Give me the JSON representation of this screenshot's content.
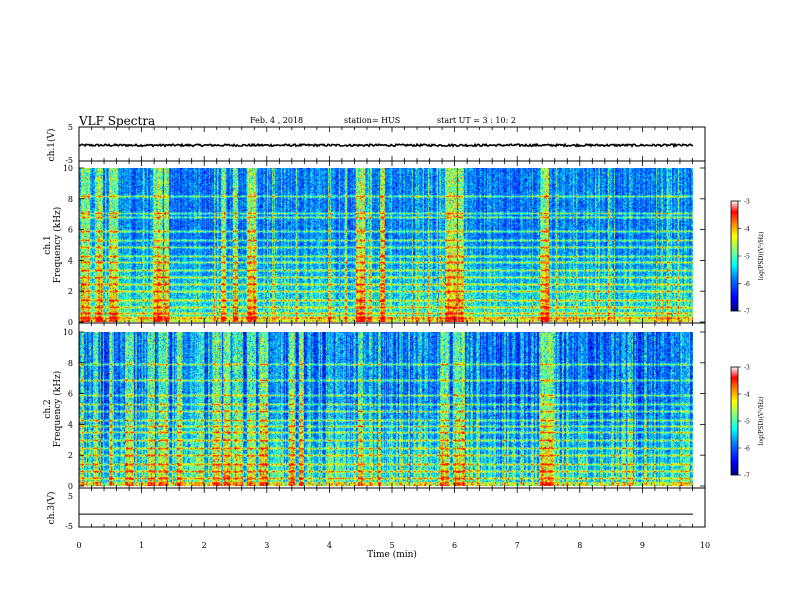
{
  "header": {
    "title": "VLF Spectra",
    "date": "Feb. 4 , 2018",
    "station": "station= HUS",
    "start": "start UT = 3 : 10: 2"
  },
  "colors": {
    "colormap": [
      "#00007f",
      "#0000ff",
      "#0080ff",
      "#00ffff",
      "#80ff80",
      "#ffff00",
      "#ff8000",
      "#ff0000",
      "#ffffff"
    ],
    "line": "#000000"
  },
  "chart_data": [
    {
      "type": "line",
      "panel": "ch1-waveform",
      "ylabel": "ch.1(V)",
      "ylim": [
        -5,
        5
      ],
      "yticks": [
        "5",
        "-5"
      ],
      "xlim": [
        0,
        10
      ],
      "series": [
        {
          "values_level": -0.4,
          "noise_amplitude": 0.35
        }
      ]
    },
    {
      "type": "heatmap",
      "panel": "ch1-spectrogram",
      "ylabel": "ch.1\nFrequency (kHz)",
      "ylim": [
        0,
        10
      ],
      "yticks": [
        "0",
        "2",
        "4",
        "6",
        "8",
        "10"
      ],
      "xlim": [
        0,
        9.83
      ],
      "colorbar": {
        "label": "log(PSD)(V²/Hz)",
        "range": [
          -7,
          -3
        ],
        "ticks": [
          "-3",
          "-4",
          "-5",
          "-6",
          "-7"
        ]
      },
      "bands_khz": [
        0.3,
        0.6,
        1.0,
        1.4,
        2.0,
        2.5,
        2.9,
        3.4,
        3.9,
        4.3,
        4.9,
        5.3,
        5.9,
        6.8,
        7.1,
        8.2
      ],
      "bright_times_min": [
        0.1,
        0.3,
        0.55,
        1.25,
        1.4,
        2.3,
        2.5,
        2.75,
        4.5,
        4.85,
        5.9,
        6.0,
        6.1,
        7.45,
        7.5
      ]
    },
    {
      "type": "heatmap",
      "panel": "ch2-spectrogram",
      "ylabel": "ch.2\nFrequency (kHz)",
      "ylim": [
        0,
        10
      ],
      "yticks": [
        "0",
        "2",
        "4",
        "6",
        "8",
        "10"
      ],
      "xlim": [
        0,
        9.83
      ],
      "colorbar": {
        "label": "log(PSD)(V²/Hz)",
        "range": [
          -7,
          -3
        ],
        "ticks": [
          "-3",
          "-4",
          "-5",
          "-6",
          "-7"
        ]
      },
      "bands_khz": [
        0.5,
        1.0,
        1.4,
        2.0,
        2.5,
        3.0,
        3.5,
        3.9,
        4.3,
        4.9,
        5.3,
        5.9,
        6.9,
        7.9
      ],
      "bright_times_min": [
        0.05,
        0.25,
        0.5,
        0.8,
        1.15,
        1.35,
        1.6,
        1.95,
        2.2,
        2.35,
        2.55,
        2.75,
        2.95,
        3.4,
        3.55,
        4.5,
        4.8,
        5.85,
        6.0,
        6.1,
        7.45,
        7.55
      ]
    },
    {
      "type": "line",
      "panel": "ch3-waveform",
      "ylabel": "ch.3(V)",
      "ylim": [
        -5,
        5
      ],
      "yticks": [
        "5",
        "-5"
      ],
      "xlim": [
        0,
        10
      ],
      "series": [
        {
          "values_level": -1.8,
          "noise_amplitude": 0
        }
      ]
    }
  ],
  "xaxis": {
    "label": "Time (min)",
    "ticks": [
      "0",
      "1",
      "2",
      "3",
      "4",
      "5",
      "6",
      "7",
      "8",
      "9",
      "10"
    ]
  }
}
